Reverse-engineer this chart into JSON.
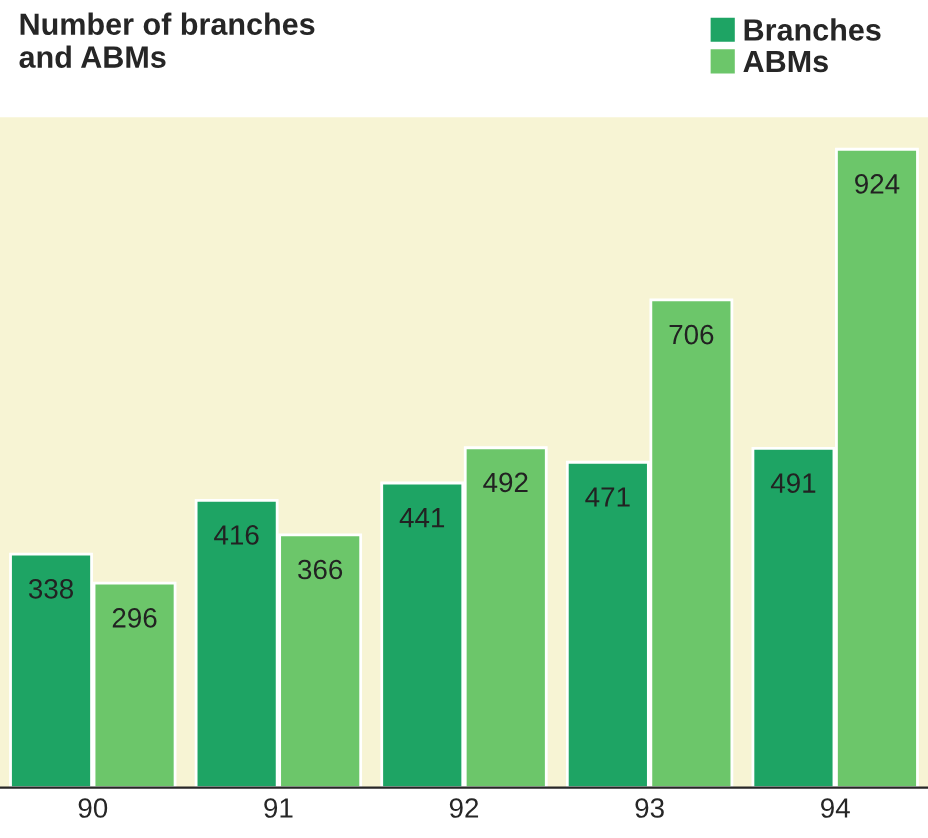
{
  "chart_data": {
    "type": "bar",
    "title": "Number of branches\nand ABMs",
    "categories": [
      "90",
      "91",
      "92",
      "93",
      "94"
    ],
    "series": [
      {
        "name": "Branches",
        "color": "#1ea464",
        "values": [
          338,
          416,
          441,
          471,
          491
        ]
      },
      {
        "name": "ABMs",
        "color": "#6cc66a",
        "values": [
          296,
          366,
          492,
          706,
          924
        ]
      }
    ],
    "data_labels": true,
    "legend": "top right",
    "grid": false
  }
}
